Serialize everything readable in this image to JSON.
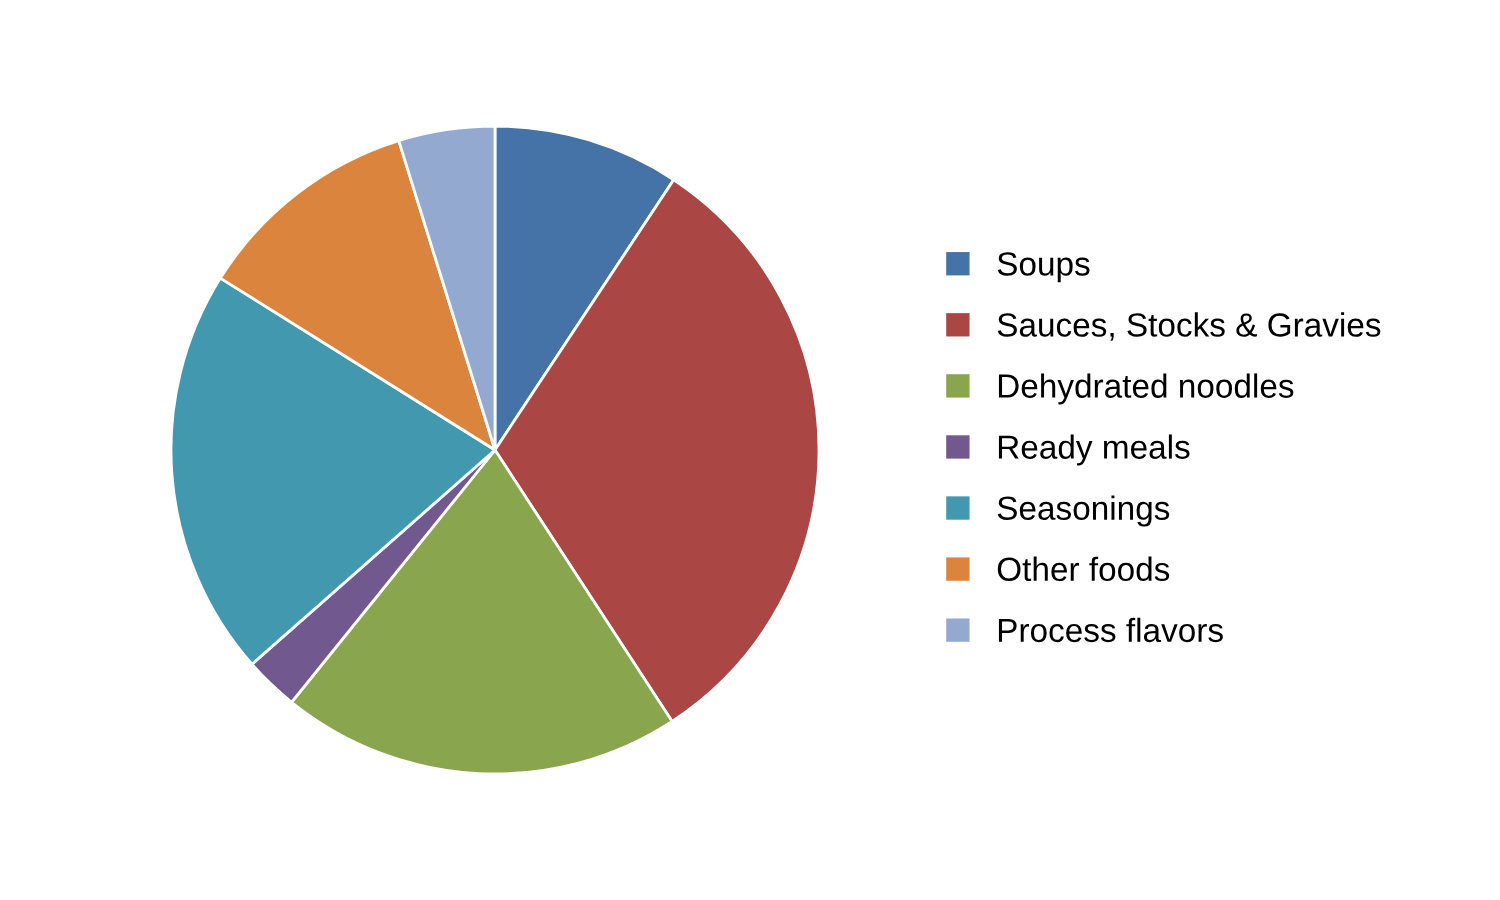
{
  "chart_data": {
    "type": "pie",
    "categories": [
      "Soups",
      "Sauces, Stocks & Gravies",
      "Dehydrated noodles",
      "Ready meals",
      "Seasonings",
      "Other foods",
      "Process flavors"
    ],
    "values": [
      9.3,
      31.5,
      20,
      2.7,
      20.4,
      11.3,
      4.8
    ],
    "colors": [
      "#4572a7",
      "#aa4643",
      "#89a54e",
      "#71588f",
      "#4198af",
      "#db843d",
      "#93a9cf"
    ],
    "legend": "right"
  }
}
